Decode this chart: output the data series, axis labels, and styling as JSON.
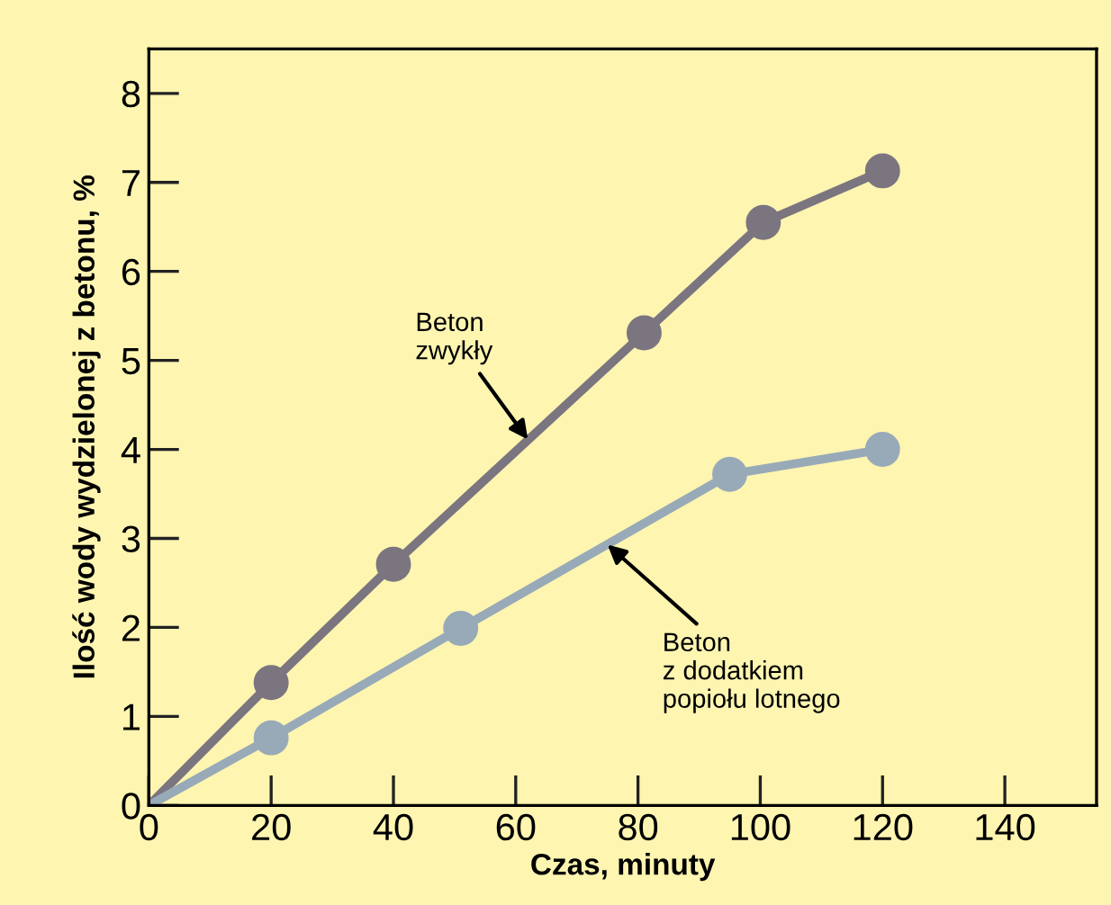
{
  "chart_data": {
    "type": "line",
    "xlabel": "Czas, minuty",
    "ylabel": "Ilość wody wydzielonej z betonu, %",
    "xlim": [
      0,
      155
    ],
    "xticks": [
      0,
      20,
      40,
      60,
      80,
      100,
      120,
      140
    ],
    "ylim": [
      0,
      8.5
    ],
    "yticks": [
      0,
      1,
      2,
      3,
      4,
      5,
      6,
      7,
      8
    ],
    "marker": "circle",
    "grid": false,
    "legend": false,
    "series": [
      {
        "color": "#7b7580",
        "x": [
          0,
          20,
          40,
          81,
          100.5,
          120
        ],
        "values": [
          0,
          1.38,
          2.71,
          5.31,
          6.55,
          7.13
        ]
      },
      {
        "color": "#98aab8",
        "x": [
          0,
          20,
          51,
          95,
          120
        ],
        "values": [
          0,
          0.76,
          1.99,
          3.72,
          4.0
        ]
      }
    ],
    "annotations": [
      {
        "text": "Beton\nzwykły",
        "x": 62,
        "y": 4.11
      },
      {
        "text": "Beton\nz dodatkiem\npopiołu lotnego",
        "x": 75,
        "y": 2.93
      }
    ]
  }
}
